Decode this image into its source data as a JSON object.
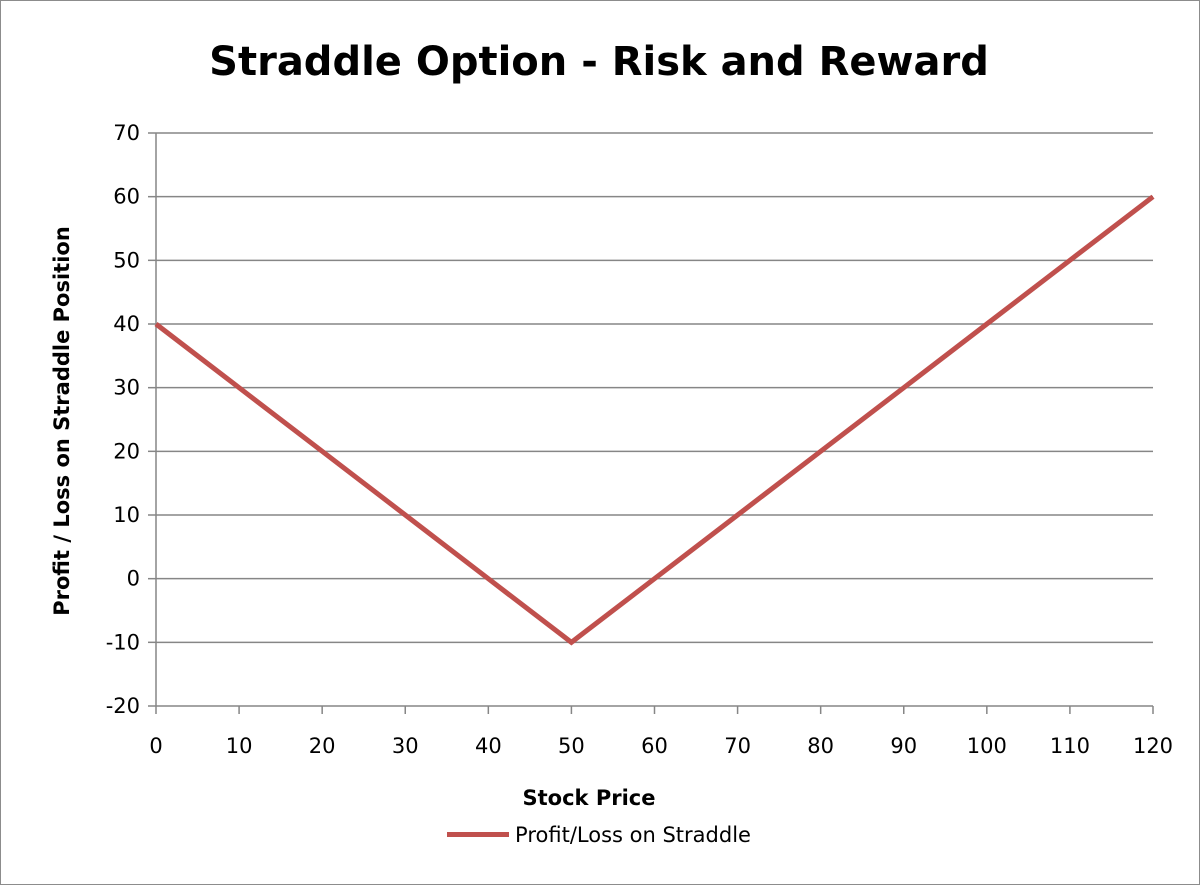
{
  "chart_data": {
    "type": "line",
    "title": "Straddle Option - Risk and Reward",
    "xlabel": "Stock Price",
    "ylabel": "Profit / Loss on Straddle Position",
    "xlim": [
      0,
      120
    ],
    "ylim": [
      -20,
      70
    ],
    "x_ticks": [
      0,
      10,
      20,
      30,
      40,
      50,
      60,
      70,
      80,
      90,
      100,
      110,
      120
    ],
    "y_ticks": [
      -20,
      -10,
      0,
      10,
      20,
      30,
      40,
      50,
      60,
      70
    ],
    "grid": "horizontal",
    "legend_position": "bottom",
    "series": [
      {
        "name": "Profit/Loss on Straddle",
        "color": "#c0504d",
        "x": [
          0,
          10,
          20,
          30,
          40,
          50,
          60,
          70,
          80,
          90,
          100,
          110,
          120
        ],
        "y": [
          40,
          30,
          20,
          10,
          0,
          -10,
          0,
          10,
          20,
          30,
          40,
          50,
          60
        ]
      }
    ]
  }
}
